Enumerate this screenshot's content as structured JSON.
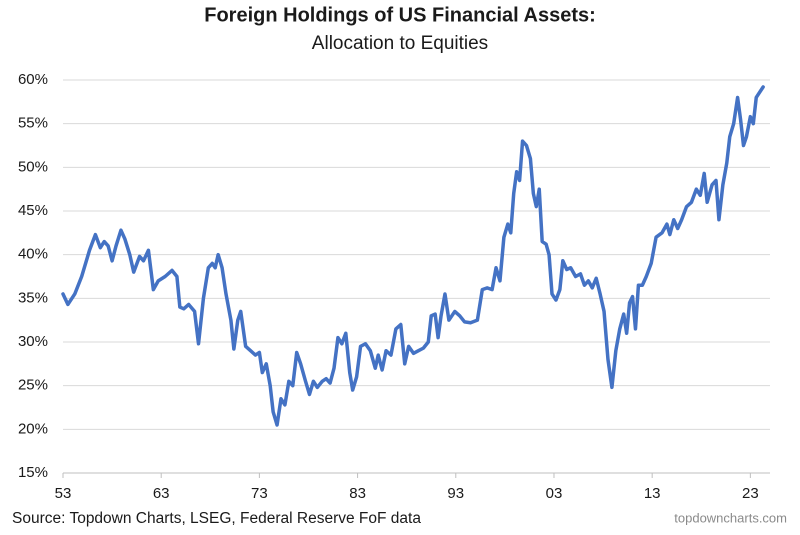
{
  "chart_data": {
    "type": "line",
    "title": "Foreign Holdings of US Financial Assets:",
    "subtitle": "Allocation to Equities",
    "source": "Source: Topdown Charts, LSEG, Federal Reserve FoF data",
    "credit": "topdowncharts.com",
    "color": "#4472c4",
    "grid": true,
    "xlim": [
      1953,
      2025
    ],
    "xticks": [
      {
        "value": 1953,
        "label": "53"
      },
      {
        "value": 1963,
        "label": "63"
      },
      {
        "value": 1973,
        "label": "73"
      },
      {
        "value": 1983,
        "label": "83"
      },
      {
        "value": 1993,
        "label": "93"
      },
      {
        "value": 2003,
        "label": "03"
      },
      {
        "value": 2013,
        "label": "13"
      },
      {
        "value": 2023,
        "label": "23"
      }
    ],
    "ylim": [
      15,
      60
    ],
    "yticks": [
      {
        "value": 15,
        "label": "15%"
      },
      {
        "value": 20,
        "label": "20%"
      },
      {
        "value": 25,
        "label": "25%"
      },
      {
        "value": 30,
        "label": "30%"
      },
      {
        "value": 35,
        "label": "35%"
      },
      {
        "value": 40,
        "label": "40%"
      },
      {
        "value": 45,
        "label": "45%"
      },
      {
        "value": 50,
        "label": "50%"
      },
      {
        "value": 55,
        "label": "55%"
      },
      {
        "value": 60,
        "label": "60%"
      }
    ],
    "x": [
      1953.0,
      1953.5,
      1954.2,
      1954.9,
      1955.7,
      1956.3,
      1956.8,
      1957.2,
      1957.6,
      1958.0,
      1958.4,
      1958.9,
      1959.3,
      1959.8,
      1960.2,
      1960.8,
      1961.2,
      1961.7,
      1962.2,
      1962.7,
      1963.4,
      1964.1,
      1964.6,
      1964.9,
      1965.3,
      1965.8,
      1966.4,
      1966.8,
      1967.3,
      1967.8,
      1968.2,
      1968.5,
      1968.8,
      1969.2,
      1969.6,
      1970.1,
      1970.4,
      1970.8,
      1971.1,
      1971.6,
      1972.1,
      1972.6,
      1973.0,
      1973.3,
      1973.7,
      1974.1,
      1974.4,
      1974.8,
      1975.2,
      1975.6,
      1976.0,
      1976.4,
      1976.8,
      1977.2,
      1977.7,
      1978.1,
      1978.5,
      1978.9,
      1979.4,
      1979.8,
      1980.2,
      1980.6,
      1981.0,
      1981.4,
      1981.8,
      1982.2,
      1982.5,
      1982.9,
      1983.3,
      1983.8,
      1984.3,
      1984.8,
      1985.1,
      1985.5,
      1985.9,
      1986.4,
      1986.9,
      1987.4,
      1987.8,
      1988.2,
      1988.7,
      1989.2,
      1989.7,
      1990.2,
      1990.5,
      1990.9,
      1991.2,
      1991.5,
      1991.9,
      1992.3,
      1992.9,
      1993.4,
      1993.9,
      1994.5,
      1995.2,
      1995.7,
      1996.2,
      1996.7,
      1997.1,
      1997.5,
      1997.9,
      1998.3,
      1998.6,
      1998.9,
      1999.2,
      1999.5,
      1999.8,
      2000.2,
      2000.6,
      2000.9,
      2001.2,
      2001.5,
      2001.8,
      2002.2,
      2002.5,
      2002.8,
      2003.2,
      2003.6,
      2003.9,
      2004.3,
      2004.7,
      2005.2,
      2005.7,
      2006.1,
      2006.5,
      2006.9,
      2007.3,
      2007.7,
      2008.1,
      2008.5,
      2008.9,
      2009.3,
      2009.7,
      2010.1,
      2010.4,
      2010.7,
      2011.0,
      2011.3,
      2011.6,
      2012.0,
      2012.4,
      2012.9,
      2013.4,
      2014.0,
      2014.5,
      2014.8,
      2015.2,
      2015.6,
      2016.0,
      2016.5,
      2017.0,
      2017.5,
      2017.9,
      2018.3,
      2018.6,
      2019.1,
      2019.5,
      2019.8,
      2020.2,
      2020.6,
      2020.9,
      2021.3,
      2021.7,
      2022.0,
      2022.3,
      2022.6,
      2023.0,
      2023.3,
      2023.6,
      2024.3
    ],
    "values": [
      35.5,
      34.3,
      35.5,
      37.5,
      40.5,
      42.3,
      40.8,
      41.5,
      41,
      39.3,
      41,
      42.8,
      41.8,
      40,
      38,
      39.8,
      39.3,
      40.5,
      36,
      37,
      37.5,
      38.2,
      37.5,
      34,
      33.8,
      34.3,
      33.5,
      29.8,
      35,
      38.5,
      39,
      38.5,
      40,
      38.5,
      35.5,
      32.5,
      29.2,
      32.5,
      33.5,
      29.5,
      29,
      28.5,
      28.8,
      26.5,
      27.5,
      25,
      22,
      20.5,
      23.5,
      22.8,
      25.5,
      25,
      28.8,
      27.5,
      25.5,
      24,
      25.5,
      24.8,
      25.5,
      25.8,
      25.3,
      27,
      30.5,
      29.8,
      31,
      26.5,
      24.5,
      26,
      29.5,
      29.8,
      29,
      27,
      28.5,
      26.8,
      29,
      28.5,
      31.5,
      32,
      27.5,
      29.5,
      28.7,
      29,
      29.3,
      30,
      33,
      33.2,
      30.5,
      33,
      35.5,
      32.5,
      33.5,
      33,
      32.3,
      32.2,
      32.5,
      36,
      36.2,
      36,
      38.5,
      37,
      42,
      43.5,
      42.5,
      47,
      49.5,
      48.5,
      53,
      52.5,
      51,
      47,
      45.5,
      47.5,
      41.5,
      41.2,
      40,
      35.5,
      34.8,
      36,
      39.3,
      38.3,
      38.5,
      37.5,
      37.8,
      36.5,
      37,
      36.2,
      37.3,
      35.5,
      33.5,
      28,
      24.8,
      29,
      31.5,
      33.2,
      31,
      34.5,
      35.2,
      31.5,
      36.5,
      36.5,
      37.5,
      39,
      42,
      42.5,
      43.5,
      42.3,
      44,
      43,
      44,
      45.5,
      46,
      47.5,
      46.8,
      49.3,
      46,
      48,
      48.5,
      44,
      48,
      50.5,
      53.5,
      55,
      58,
      55.5,
      52.5,
      53.5,
      55.8,
      55,
      58,
      59.2
    ]
  }
}
